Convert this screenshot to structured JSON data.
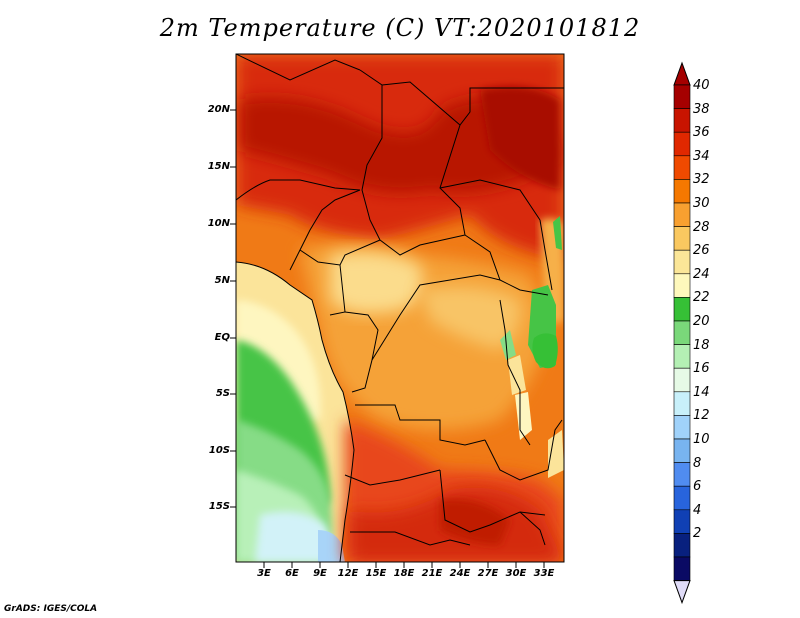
{
  "title": "2m Temperature (C) VT:2020101812",
  "credit": "GrADS: IGES/COLA",
  "map": {
    "lat_ticks": [
      "20N",
      "15N",
      "10N",
      "5N",
      "EQ",
      "5S",
      "10S",
      "15S"
    ],
    "lat_values": [
      20,
      15,
      10,
      5,
      0,
      -5,
      -10,
      -15
    ],
    "lon_ticks": [
      "3E",
      "6E",
      "9E",
      "12E",
      "15E",
      "18E",
      "21E",
      "24E",
      "27E",
      "30E",
      "33E"
    ],
    "lon_values": [
      3,
      6,
      9,
      12,
      15,
      18,
      21,
      24,
      27,
      30,
      33
    ],
    "lat_range": [
      -19.5,
      24.5
    ],
    "lon_range": [
      0,
      35
    ]
  },
  "colorbar": {
    "labels": [
      "40",
      "38",
      "36",
      "34",
      "32",
      "30",
      "28",
      "26",
      "24",
      "22",
      "20",
      "18",
      "16",
      "14",
      "12",
      "10",
      "8",
      "6",
      "4",
      "2"
    ],
    "colors": [
      "#a50000",
      "#c81400",
      "#e02800",
      "#f04a00",
      "#f57800",
      "#f8a030",
      "#fac860",
      "#fbe698",
      "#fef8bc",
      "#36c036",
      "#7ad87a",
      "#b4f0b4",
      "#e6fae6",
      "#c8f0fa",
      "#a0d2fa",
      "#78b4f0",
      "#508cf0",
      "#2864dc",
      "#1040b4",
      "#08207e",
      "#0a0a64"
    ],
    "top_arrow_color": "#a50000",
    "bottom_arrow_color": "#e0dcf8"
  }
}
